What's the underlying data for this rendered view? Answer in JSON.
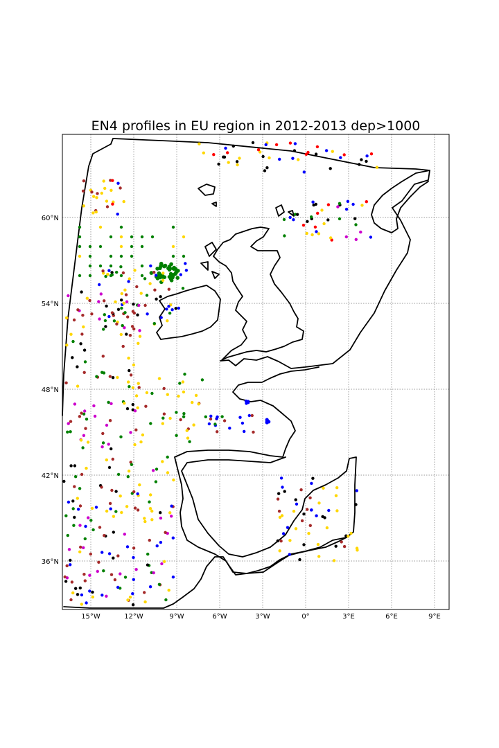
{
  "map": {
    "title": "EN4 profiles in EU region in 2012-2013 dep>1000",
    "lon_ticks": [
      "15°W",
      "12°W",
      "9°W",
      "6°W",
      "3°W",
      "0°",
      "3°E",
      "6°E",
      "9°E"
    ],
    "lat_ticks": [
      "60°N",
      "54°N",
      "48°N",
      "42°N",
      "36°N"
    ],
    "grid": true,
    "colors": {
      "yellow": "#ffd700",
      "brown": "#a52a2a",
      "black": "#000000",
      "green": "#008000",
      "blue": "#0000ff",
      "red": "#ff0000",
      "magenta": "#cc00cc"
    }
  }
}
